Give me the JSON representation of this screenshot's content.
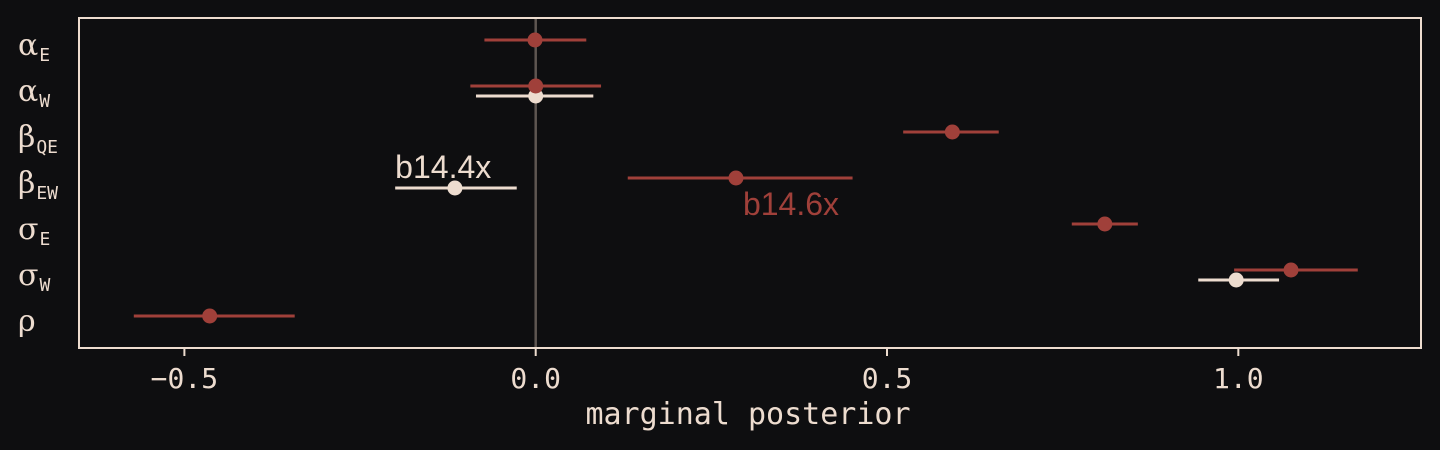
{
  "colors": {
    "background": "#0e0e10",
    "frame": "#eddccf",
    "zero_line": "#5e5651",
    "model_a": "#eddccf",
    "model_b": "#a0403a"
  },
  "chart_data": {
    "type": "forest",
    "title": "",
    "xlabel": "marginal posterior",
    "ylabel": "",
    "xlim": [
      -0.65,
      1.26
    ],
    "xticks": [
      -0.5,
      0.0,
      0.5,
      1.0
    ],
    "xtick_labels": [
      "−0.5",
      "0.0",
      "0.5",
      "1.0"
    ],
    "reference_line_x": 0.0,
    "grid": false,
    "parameters": [
      {
        "symbol": "α",
        "subscript": "E"
      },
      {
        "symbol": "α",
        "subscript": "W"
      },
      {
        "symbol": "β",
        "subscript": "QE"
      },
      {
        "symbol": "β",
        "subscript": "EW"
      },
      {
        "symbol": "σ",
        "subscript": "E"
      },
      {
        "symbol": "σ",
        "subscript": "W"
      },
      {
        "symbol": "ρ",
        "subscript": ""
      }
    ],
    "series": [
      {
        "name": "b14.4x",
        "color": "#eddccf",
        "points": [
          {
            "param": 1,
            "mean": 0.0,
            "lo": -0.085,
            "hi": 0.082
          },
          {
            "param": 3,
            "mean": -0.115,
            "lo": -0.2,
            "hi": -0.027
          },
          {
            "param": 5,
            "mean": 0.997,
            "lo": 0.943,
            "hi": 1.058
          }
        ]
      },
      {
        "name": "b14.6x",
        "color": "#a0403a",
        "points": [
          {
            "param": 0,
            "mean": -0.001,
            "lo": -0.073,
            "hi": 0.072
          },
          {
            "param": 1,
            "mean": 0.0,
            "lo": -0.093,
            "hi": 0.093
          },
          {
            "param": 2,
            "mean": 0.593,
            "lo": 0.523,
            "hi": 0.659
          },
          {
            "param": 3,
            "mean": 0.285,
            "lo": 0.131,
            "hi": 0.451
          },
          {
            "param": 4,
            "mean": 0.81,
            "lo": 0.763,
            "hi": 0.857
          },
          {
            "param": 5,
            "mean": 1.075,
            "lo": 0.994,
            "hi": 1.17
          },
          {
            "param": 6,
            "mean": -0.464,
            "lo": -0.572,
            "hi": -0.343
          }
        ]
      }
    ]
  }
}
